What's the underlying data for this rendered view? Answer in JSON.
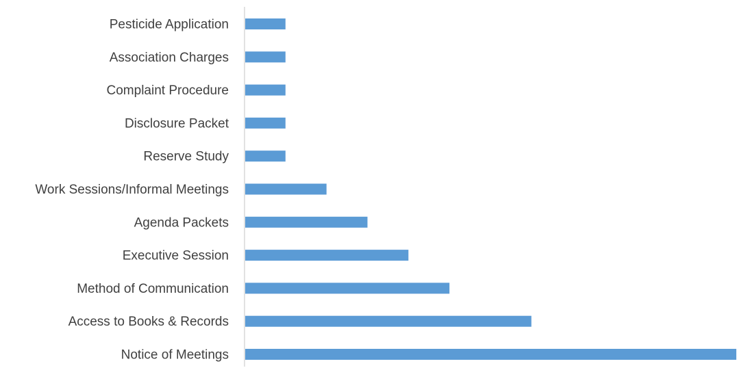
{
  "chart_data": {
    "type": "bar",
    "orientation": "horizontal",
    "categories": [
      "Pesticide Application",
      "Association Charges",
      "Complaint Procedure",
      "Disclosure Packet",
      "Reserve Study",
      "Work Sessions/Informal Meetings",
      "Agenda Packets",
      "Executive Session",
      "Method of Communication",
      "Access to Books & Records",
      "Notice of Meetings"
    ],
    "values": [
      1,
      1,
      1,
      1,
      1,
      2,
      3,
      4,
      5,
      7,
      12
    ],
    "title": "",
    "xlabel": "",
    "ylabel": "",
    "xlim": [
      0,
      12
    ],
    "grid": false,
    "legend": "none",
    "colors": {
      "bar": "#5b9bd5",
      "axis": "#d9d9d9",
      "label": "#404040"
    }
  }
}
